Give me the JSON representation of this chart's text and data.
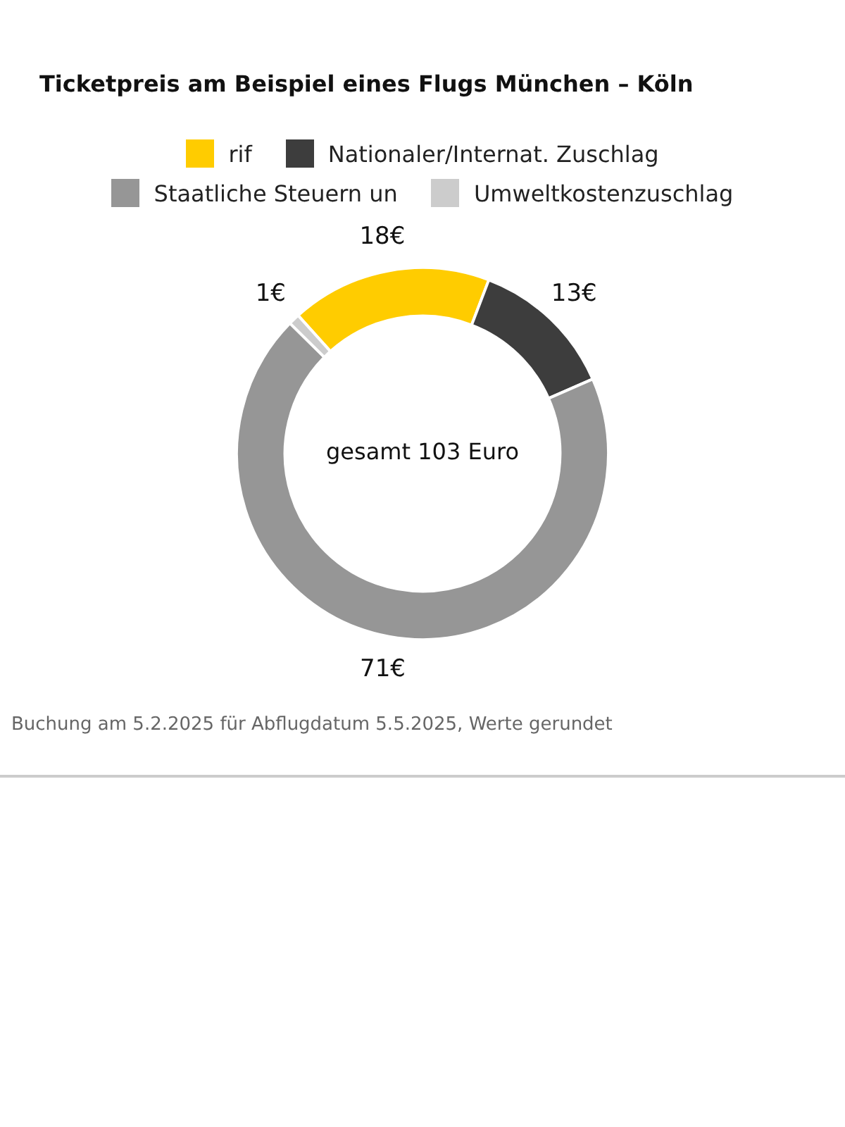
{
  "chart_data": {
    "type": "donut",
    "title": "Ticketpreis am Beispiel eines Flugs München – Köln",
    "categories": [
      "rif",
      "Nationaler/Internat. Zuschlag",
      "Staatliche Steuern un",
      "Umweltkostenzuschlag"
    ],
    "values": [
      18,
      13,
      71,
      1
    ],
    "value_labels": [
      "18€",
      "13€",
      "71€",
      "1€"
    ],
    "colors": [
      "#ffcc00",
      "#3d3d3d",
      "#969696",
      "#cccccc"
    ],
    "legend": "top",
    "annotations": [
      "gesamt 103 Euro",
      "Buchung am 5.2.2025 für Abflugdatum 5.5.2025, Werte gerundet"
    ]
  }
}
